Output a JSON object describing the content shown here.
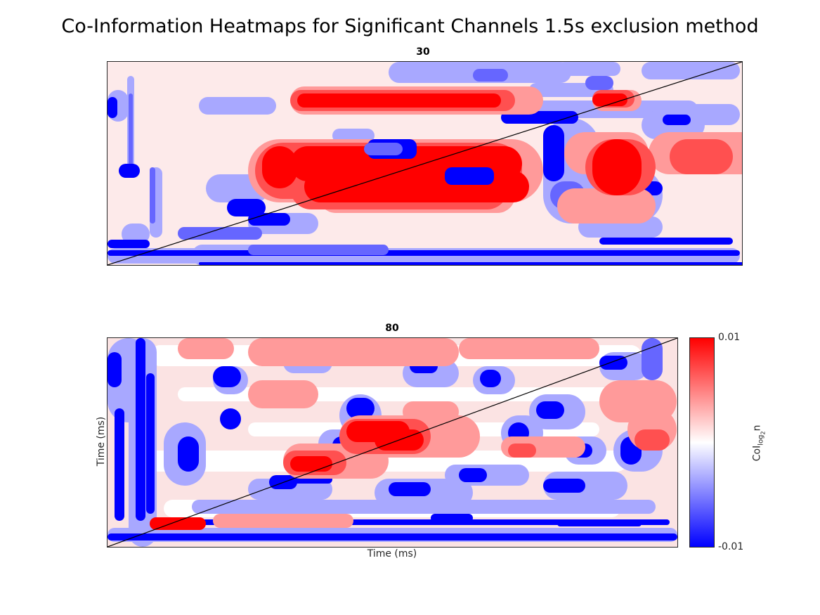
{
  "figure": {
    "title": "Co-Information Heatmaps for Significant Channels 1.5s exclusion method"
  },
  "chart_data": [
    {
      "type": "heatmap",
      "title": "30",
      "xlabel": "",
      "ylabel": "",
      "diagonal": true,
      "colormap": "blue-white-red"
    },
    {
      "type": "heatmap",
      "title": "80",
      "xlabel": "Time (ms)",
      "ylabel": "Time (ms)",
      "diagonal": true,
      "colormap": "blue-white-red",
      "colorbar": {
        "min_label": "-0.01",
        "max_label": "0.01",
        "min": -0.01,
        "max": 0.01,
        "label_main": "CoI",
        "label_sub": "log",
        "label_subsub": "2",
        "label_tail": "n"
      }
    }
  ],
  "colors": {
    "red": "#ff0000",
    "blue": "#0000ff",
    "white": "#ffffff",
    "pale_red": "#fdeaea"
  }
}
